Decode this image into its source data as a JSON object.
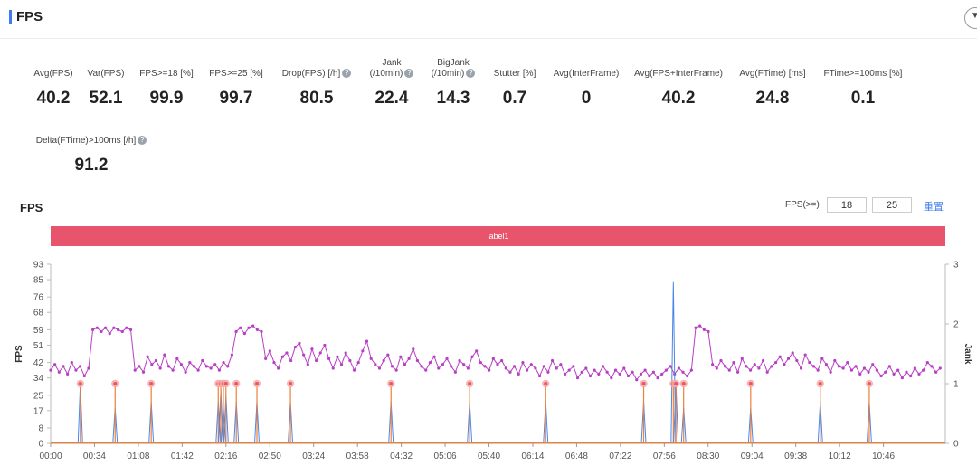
{
  "section": {
    "title": "FPS"
  },
  "metrics": [
    {
      "label": "Avg(FPS)",
      "value": "40.2"
    },
    {
      "label": "Var(FPS)",
      "value": "52.1"
    },
    {
      "label": "FPS>=18 [%]",
      "value": "99.9"
    },
    {
      "label": "FPS>=25 [%]",
      "value": "99.7"
    },
    {
      "label": "Drop(FPS) [/h]",
      "value": "80.5"
    },
    {
      "label1": "Jank",
      "label2": "(/10min)",
      "value": "22.4"
    },
    {
      "label1": "BigJank",
      "label2": "(/10min)",
      "value": "14.3"
    },
    {
      "label": "Stutter [%]",
      "value": "0.7"
    },
    {
      "label": "Avg(InterFrame)",
      "value": "0"
    },
    {
      "label": "Avg(FPS+InterFrame)",
      "value": "40.2"
    },
    {
      "label": "Avg(FTime) [ms]",
      "value": "24.8"
    },
    {
      "label": "FTime>=100ms [%]",
      "value": "0.1"
    },
    {
      "label": "Delta(FTime)>100ms [/h]",
      "value": "91.2"
    }
  ],
  "chart_section": {
    "title": "FPS",
    "threshold_label": "FPS(>=)",
    "threshold_low": "18",
    "threshold_high": "25",
    "reset_label": "重置",
    "label_band": "label1"
  },
  "chart_data": {
    "type": "line",
    "title": "",
    "ylabel": "FPS",
    "y2label": "Jank",
    "ylim": [
      0,
      93
    ],
    "y2lim": [
      0,
      3
    ],
    "yticks": [
      "0",
      "8",
      "17",
      "25",
      "34",
      "42",
      "51",
      "59",
      "68",
      "76",
      "85",
      "93"
    ],
    "y2ticks": [
      "0",
      "1",
      "2",
      "3"
    ],
    "xticks": [
      "00:00",
      "00:34",
      "01:08",
      "01:42",
      "02:16",
      "02:50",
      "03:24",
      "03:58",
      "04:32",
      "05:06",
      "05:40",
      "06:14",
      "06:48",
      "07:22",
      "07:56",
      "08:30",
      "09:04",
      "09:38",
      "10:12",
      "10:46"
    ],
    "x_range_seconds": [
      0,
      694
    ],
    "series": [
      {
        "role": "fps",
        "color": "#b83fc4",
        "values": [
          38,
          41,
          37,
          40,
          36,
          42,
          38,
          40,
          35,
          39,
          59,
          60,
          58,
          60,
          57,
          60,
          59,
          58,
          60,
          59,
          38,
          40,
          37,
          45,
          41,
          43,
          39,
          46,
          40,
          38,
          44,
          41,
          37,
          42,
          40,
          38,
          43,
          40,
          39,
          41,
          38,
          42,
          40,
          46,
          58,
          60,
          57,
          60,
          61,
          59,
          58,
          44,
          48,
          42,
          39,
          45,
          47,
          43,
          50,
          52,
          46,
          41,
          49,
          43,
          47,
          51,
          44,
          39,
          45,
          41,
          47,
          43,
          38,
          42,
          48,
          53,
          44,
          41,
          39,
          43,
          46,
          40,
          38,
          45,
          41,
          44,
          49,
          43,
          40,
          38,
          42,
          45,
          39,
          41,
          44,
          40,
          37,
          43,
          41,
          39,
          45,
          48,
          42,
          40,
          38,
          44,
          41,
          43,
          39,
          37,
          40,
          36,
          42,
          38,
          41,
          39,
          35,
          40,
          37,
          43,
          39,
          41,
          36,
          38,
          40,
          34,
          37,
          39,
          35,
          38,
          36,
          40,
          37,
          34,
          38,
          36,
          39,
          35,
          37,
          33,
          36,
          38,
          35,
          37,
          34,
          36,
          38,
          40,
          36,
          39,
          37,
          35,
          38,
          60,
          61,
          59,
          58,
          41,
          39,
          43,
          40,
          38,
          42,
          37,
          44,
          40,
          38,
          41,
          39,
          43,
          37,
          40,
          42,
          45,
          41,
          44,
          47,
          43,
          39,
          46,
          42,
          40,
          38,
          44,
          41,
          37,
          43,
          40,
          39,
          42,
          38,
          40,
          36,
          39,
          37,
          41,
          38,
          35,
          37,
          40,
          36,
          38,
          34,
          37,
          35,
          39,
          36,
          38,
          42,
          40,
          37,
          39
        ]
      },
      {
        "role": "jank",
        "color": "#4a86e8",
        "values": [
          0,
          0,
          0,
          0,
          0,
          0,
          0,
          0,
          0,
          0,
          0,
          0,
          0,
          0,
          0,
          0,
          0,
          0,
          0,
          0,
          0,
          0,
          0,
          0,
          0,
          0,
          0,
          0,
          0,
          0,
          0,
          0,
          0,
          0,
          0,
          0,
          0,
          0,
          0,
          0,
          0,
          0,
          0,
          0,
          0,
          0,
          0,
          0,
          0,
          0,
          0,
          0,
          0,
          0,
          0,
          0,
          0,
          0,
          0,
          0,
          0,
          0,
          0,
          0,
          0,
          0,
          0,
          0,
          0,
          0,
          0,
          0,
          0,
          0,
          0,
          0,
          0,
          0,
          0,
          0,
          0,
          0,
          0,
          0,
          0,
          0,
          0,
          0,
          0,
          0,
          0,
          0,
          0,
          0,
          0,
          0,
          0,
          0,
          0,
          0,
          0,
          0,
          0,
          0,
          0,
          0,
          0,
          0,
          0,
          0,
          0,
          0,
          0,
          0,
          0,
          0,
          0,
          0,
          0,
          0,
          0,
          0,
          0,
          0,
          0,
          0,
          0,
          0,
          0,
          0,
          0,
          0,
          0,
          0,
          0,
          0,
          0,
          0,
          0,
          0,
          0,
          0,
          0,
          0,
          0,
          0,
          0,
          0,
          0,
          0,
          0,
          0,
          0,
          0,
          0,
          0,
          0,
          0,
          0,
          0,
          0,
          0,
          0,
          0,
          0,
          0,
          0,
          0,
          0,
          0,
          0,
          0,
          0,
          0,
          0,
          0,
          0,
          0,
          0,
          0,
          0,
          0,
          0,
          0,
          0,
          0,
          0,
          0,
          0,
          0,
          0,
          0,
          0,
          0,
          0,
          0,
          0,
          0,
          0,
          0,
          0,
          0,
          0,
          0,
          0,
          0,
          0,
          0,
          0,
          0,
          0,
          0
        ]
      },
      {
        "role": "bigjank",
        "color": "#ee7f3b",
        "values": [
          0
        ]
      }
    ],
    "fps_x_end_seconds": 690,
    "jank_spikes": [
      {
        "t": 23,
        "fps": 34,
        "jank": 1.0
      },
      {
        "t": 50,
        "fps": 30,
        "jank": 0.6
      },
      {
        "t": 78,
        "fps": 32,
        "jank": 0.7
      },
      {
        "t": 130,
        "fps": 30,
        "jank": 0.7
      },
      {
        "t": 132,
        "fps": 28,
        "jank": 0.9
      },
      {
        "t": 134,
        "fps": 29,
        "jank": 0.6
      },
      {
        "t": 136,
        "fps": 30,
        "jank": 0.8
      },
      {
        "t": 144,
        "fps": 32,
        "jank": 0.7
      },
      {
        "t": 160,
        "fps": 0,
        "jank": 0.7
      },
      {
        "t": 186,
        "fps": 32,
        "jank": 0.7
      },
      {
        "t": 264,
        "fps": 32,
        "jank": 0.7
      },
      {
        "t": 325,
        "fps": 32,
        "jank": 0.7
      },
      {
        "t": 384,
        "fps": 32,
        "jank": 0.7
      },
      {
        "t": 460,
        "fps": 32,
        "jank": 0.7
      },
      {
        "t": 483,
        "fps": 30,
        "jank": 2.7
      },
      {
        "t": 485,
        "fps": 31,
        "jank": 1.0
      },
      {
        "t": 491,
        "fps": 30,
        "jank": 0.6
      },
      {
        "t": 543,
        "fps": 32,
        "jank": 0.6
      },
      {
        "t": 597,
        "fps": 32,
        "jank": 0.7
      },
      {
        "t": 635,
        "fps": 31,
        "jank": 0.7
      }
    ]
  }
}
